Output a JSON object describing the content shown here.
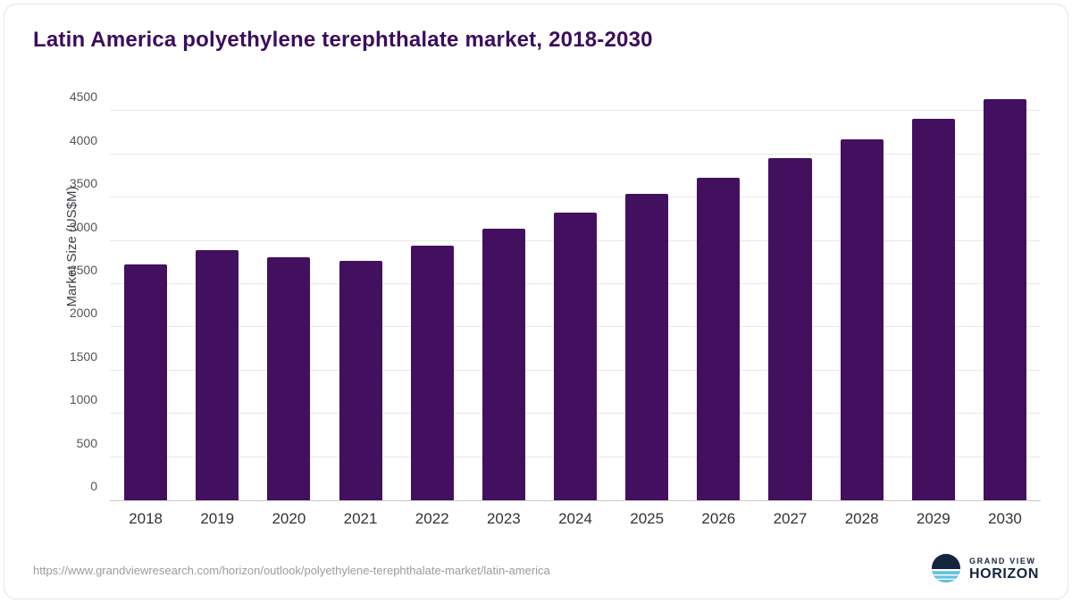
{
  "chart_data": {
    "type": "bar",
    "title": "Latin America polyethylene terephthalate market, 2018-2030",
    "categories": [
      "2018",
      "2019",
      "2020",
      "2021",
      "2022",
      "2023",
      "2024",
      "2025",
      "2026",
      "2027",
      "2028",
      "2029",
      "2030"
    ],
    "values": [
      2730,
      2890,
      2810,
      2770,
      2940,
      3140,
      3330,
      3540,
      3730,
      3960,
      4170,
      4410,
      4640
    ],
    "xlabel": "",
    "ylabel": "Market Size (US$M)",
    "ylim": [
      0,
      4700
    ],
    "yticks": [
      0,
      500,
      1000,
      1500,
      2000,
      2500,
      3000,
      3500,
      4000,
      4500
    ],
    "grid": true,
    "legend": "none",
    "bar_color": "#42105e",
    "title_color": "#3c0d5e"
  },
  "footer": {
    "source_url": "https://www.grandviewresearch.com/horizon/outlook/polyethylene-terephthalate-market/latin-america",
    "logo": {
      "line1": "GRAND VIEW",
      "line2": "HORIZON",
      "navy": "#16253f",
      "cyan": "#5bc6e8"
    }
  }
}
